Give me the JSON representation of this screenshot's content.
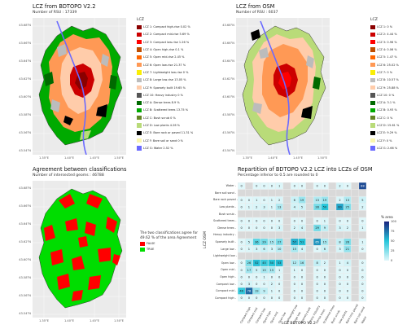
{
  "panel1": {
    "title": "LCZ from  BDTOPO V2.2",
    "subtitle": "Number of RSU : 17339",
    "legend_title": "LCZ",
    "legend": [
      {
        "label": "LCZ 1: Compact high-rise 0.02 %",
        "color": "#8b0000"
      },
      {
        "label": "LCZ 2: Compact mid-rise 5.69 %",
        "color": "#cc0000"
      },
      {
        "label": "LCZ 3: Compact low-rise 1.26 %",
        "color": "#ff0000"
      },
      {
        "label": "LCZ 4: Open high-rise 0.1 %",
        "color": "#bf4d00"
      },
      {
        "label": "LCZ 5: Open mid-rise 2.45 %",
        "color": "#ff6600"
      },
      {
        "label": "LCZ 6: Open low-rise 21.37 %",
        "color": "#ff9955"
      },
      {
        "label": "LCZ 7: Lightweight low-rise 0 %",
        "color": "#faee05"
      },
      {
        "label": "LCZ 8: Large low-rise 13.05 %",
        "color": "#bcbcbc"
      },
      {
        "label": "LCZ 9: Sparsely built 19.65 %",
        "color": "#ffccaa"
      },
      {
        "label": "LCZ 10: Heavy industry 0 %",
        "color": "#555555"
      },
      {
        "label": "LCZ A: Dense trees 8.9 %",
        "color": "#006a00"
      },
      {
        "label": "LCZ B: Scattered trees 13.75 %",
        "color": "#00aa00"
      },
      {
        "label": "LCZ C: Bush scrub 0 %",
        "color": "#648525"
      },
      {
        "label": "LCZ D: Low plants 4.26 %",
        "color": "#b9db79"
      },
      {
        "label": "LCZ E: Bare rock or paved 11.31 %",
        "color": "#000000"
      },
      {
        "label": "LCZ F: Bare soil or sand 0 %",
        "color": "#fbf7ae"
      },
      {
        "label": "LCZ G: Water 2.52 %",
        "color": "#6a6aff"
      }
    ]
  },
  "panel2": {
    "title": "LCZ from  OSM",
    "subtitle": "Number of RSU : 6037",
    "legend_title": "LCZ",
    "legend": [
      {
        "label": "LCZ 1: 0 %",
        "color": "#8b0000"
      },
      {
        "label": "LCZ 2: 4.44 %",
        "color": "#cc0000"
      },
      {
        "label": "LCZ 3: 0.96 %",
        "color": "#ff0000"
      },
      {
        "label": "LCZ 4: 0.06 %",
        "color": "#bf4d00"
      },
      {
        "label": "LCZ 5: 1.47 %",
        "color": "#ff6600"
      },
      {
        "label": "LCZ 6: 25.02 %",
        "color": "#ff9955"
      },
      {
        "label": "LCZ 7: 0 %",
        "color": "#faee05"
      },
      {
        "label": "LCZ 8: 10.57 %",
        "color": "#bcbcbc"
      },
      {
        "label": "LCZ 9: 25.88 %",
        "color": "#ffccaa"
      },
      {
        "label": "LCZ 10: 0 %",
        "color": "#555555"
      },
      {
        "label": "LCZ A: 3.1 %",
        "color": "#006a00"
      },
      {
        "label": "LCZ B: 0.93 %",
        "color": "#00aa00"
      },
      {
        "label": "LCZ C: 0 %",
        "color": "#648525"
      },
      {
        "label": "LCZ D: 15.61 %",
        "color": "#b9db79"
      },
      {
        "label": "LCZ E: 9.29 %",
        "color": "#000000"
      },
      {
        "label": "LCZ F: 0 %",
        "color": "#fbf7ae"
      },
      {
        "label": "LCZ G: 2.66 %",
        "color": "#6a6aff"
      }
    ]
  },
  "panel3": {
    "title": "Agreement between classifications",
    "subtitle": "Number of intersected geoms : 46788",
    "agree_line1": "The two classifications agree for",
    "agree_line2": "49.62 % of the area Agreement",
    "legend": [
      {
        "label": "FALSE",
        "color": "#ff0000"
      },
      {
        "label": "TRUE",
        "color": "#00dd00"
      }
    ]
  },
  "map_axes": {
    "lat_ticks": [
      "43.68°N",
      "43.66°N",
      "43.64°N",
      "43.62°N",
      "43.60°N",
      "43.58°N",
      "43.56°N",
      "43.54°N"
    ],
    "lon_ticks": [
      "1.35°E",
      "1.40°E",
      "1.45°E",
      "1.50°E"
    ]
  },
  "heatmap": {
    "title": "Repartition of  BDTOPO V2.2  LCZ into LCZs of  OSM",
    "subtitle": "Percentage inferior to 0.5 are rounded to 0",
    "xlabel": "LCZ  BDTOPO V2.2",
    "ylabel": "LCZ  OSM",
    "colorbar_title": "% area",
    "colorbar_ticks": [
      "100",
      "75",
      "50",
      "25",
      "0"
    ],
    "colors": {
      "low": "#e0f7fa",
      "mid": "#26c6da",
      "high": "#1a237e",
      "empty": "#d9d9d9"
    }
  },
  "chart_data": {
    "type": "heatmap",
    "title": "Repartition of  BDTOPO V2.2  LCZ into LCZs of  OSM",
    "subtitle": "Percentage inferior to 0.5 are rounded to 0",
    "xlabel": "LCZ  BDTOPO V2.2",
    "ylabel": "LCZ  OSM",
    "x": [
      "Compact high",
      "Compact mid",
      "Compact low",
      "Open high",
      "Open mid",
      "Open low",
      "Lightweight low",
      "Large low",
      "Sparsely built",
      "Heavy industry",
      "Dense trees",
      "Scattered trees",
      "Bush scrub",
      "Low plants",
      "Bare rock paved",
      "Bare soil sand",
      "Water"
    ],
    "y": [
      "Water",
      "Bare soil sand",
      "Bare rock paved",
      "Low plants",
      "Bush scrub",
      "Scattered trees",
      "Dense trees",
      "Heavy industry",
      "Sparsely built",
      "Large low",
      "Lightweight low",
      "Open low",
      "Open mid",
      "Open high",
      "Compact low",
      "Compact mid",
      "Compact high"
    ],
    "values": [
      [
        0,
        null,
        0,
        0,
        0,
        1,
        null,
        0,
        0,
        null,
        0,
        0,
        null,
        2,
        0,
        null,
        88
      ],
      [
        null,
        null,
        null,
        null,
        null,
        null,
        null,
        null,
        null,
        null,
        null,
        null,
        null,
        null,
        null,
        null,
        null
      ],
      [
        0,
        0,
        1,
        0,
        1,
        2,
        null,
        6,
        19,
        null,
        13,
        19,
        null,
        2,
        13,
        null,
        5
      ],
      [
        0,
        1,
        2,
        3,
        1,
        13,
        null,
        4,
        5,
        null,
        28,
        50,
        null,
        60,
        25,
        null,
        2
      ],
      [
        null,
        null,
        null,
        null,
        null,
        null,
        null,
        null,
        null,
        null,
        null,
        null,
        null,
        null,
        null,
        null,
        null
      ],
      [
        0,
        0,
        0,
        0,
        0,
        0,
        null,
        0,
        0,
        null,
        0,
        1,
        null,
        0,
        0,
        null,
        0
      ],
      [
        0,
        0,
        0,
        0,
        0,
        3,
        null,
        2,
        4,
        null,
        29,
        9,
        null,
        3,
        2,
        null,
        1
      ],
      [
        null,
        null,
        null,
        null,
        null,
        null,
        null,
        null,
        null,
        null,
        null,
        null,
        null,
        null,
        null,
        null,
        null
      ],
      [
        0,
        5,
        36,
        29,
        15,
        27,
        null,
        57,
        51,
        null,
        65,
        15,
        null,
        8,
        26,
        null,
        1
      ],
      [
        0,
        1,
        3,
        6,
        3,
        10,
        null,
        15,
        4,
        null,
        0,
        6,
        null,
        3,
        21,
        null,
        0
      ],
      [
        null,
        null,
        null,
        null,
        null,
        null,
        null,
        null,
        null,
        null,
        null,
        null,
        null,
        null,
        null,
        null,
        null
      ],
      [
        0,
        26,
        52,
        45,
        50,
        53,
        null,
        12,
        16,
        null,
        8,
        2,
        null,
        1,
        4,
        null,
        0
      ],
      [
        0,
        17,
        5,
        15,
        15,
        1,
        null,
        1,
        0,
        null,
        0,
        0,
        null,
        0,
        0,
        null,
        0
      ],
      [
        0,
        0,
        0,
        1,
        0,
        0,
        null,
        0,
        0,
        null,
        0,
        0,
        null,
        0,
        0,
        null,
        0
      ],
      [
        0,
        3,
        0,
        0,
        2,
        0,
        null,
        0,
        0,
        null,
        0,
        0,
        null,
        0,
        0,
        null,
        0
      ],
      [
        46,
        78,
        19,
        9,
        1,
        0,
        null,
        0,
        0,
        null,
        0,
        0,
        null,
        0,
        0,
        null,
        0
      ],
      [
        0,
        0,
        0,
        0,
        0,
        0,
        null,
        0,
        0,
        null,
        0,
        0,
        null,
        0,
        0,
        null,
        0
      ]
    ],
    "colorbar_range": [
      0,
      100
    ]
  }
}
